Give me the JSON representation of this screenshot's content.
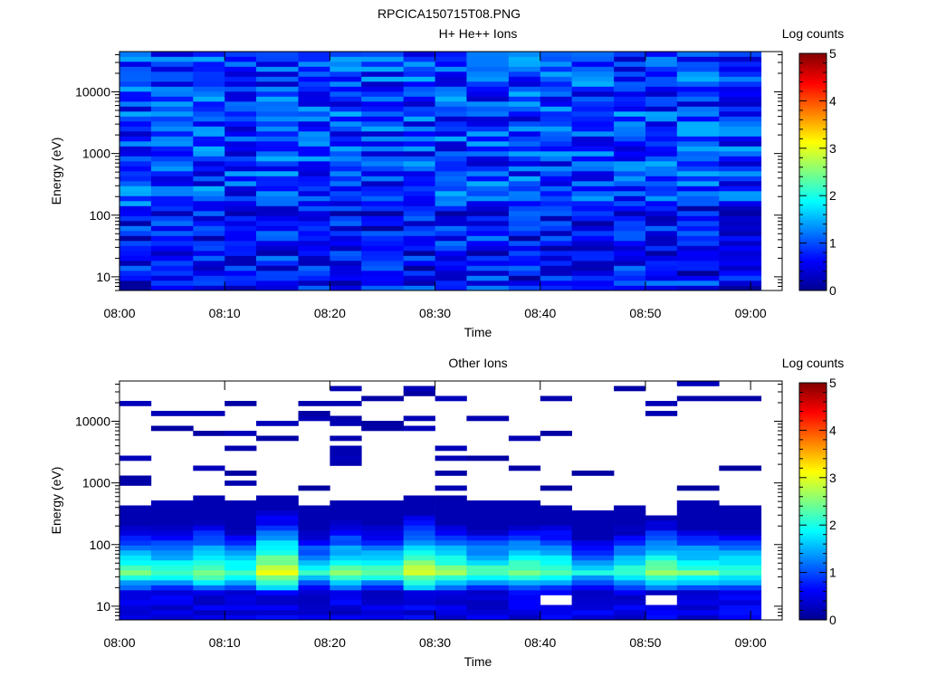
{
  "figure": {
    "title": "RPCICA150715T08.PNG"
  },
  "chart_data": [
    {
      "type": "heatmap",
      "title": "H+ He++ Ions",
      "xlabel": "Time",
      "ylabel": "Energy (eV)",
      "x_ticks": [
        "08:00",
        "08:10",
        "08:20",
        "08:30",
        "08:40",
        "08:50",
        "09:00"
      ],
      "y_ticks": [
        "10",
        "100",
        "1000",
        "10000"
      ],
      "y_scale": "log",
      "ylim": [
        6,
        45000
      ],
      "xlim": [
        "08:00",
        "09:03"
      ],
      "colorbar": {
        "label": "Log counts",
        "ticks": [
          "0",
          "1",
          "2",
          "3",
          "4",
          "5"
        ],
        "range": [
          0,
          5
        ]
      },
      "time_bins": [
        "08:00",
        "08:03",
        "08:07",
        "08:10",
        "08:13",
        "08:17",
        "08:20",
        "08:23",
        "08:27",
        "08:30",
        "08:33",
        "08:37",
        "08:40",
        "08:43",
        "08:47",
        "08:50",
        "08:53",
        "08:57"
      ],
      "energy_range": [
        6,
        45000
      ],
      "energy_bins": 48,
      "profile": "uniform",
      "cell_level_range": [
        0.3,
        1.5
      ],
      "colors": {
        "fill": "#1e6cf0",
        "data_end_time": "09:01"
      }
    },
    {
      "type": "heatmap",
      "title": "Other Ions",
      "xlabel": "Time",
      "ylabel": "Energy (eV)",
      "x_ticks": [
        "08:00",
        "08:10",
        "08:20",
        "08:30",
        "08:40",
        "08:50",
        "09:00"
      ],
      "y_ticks": [
        "10",
        "100",
        "1000",
        "10000"
      ],
      "y_scale": "log",
      "ylim": [
        6,
        45000
      ],
      "xlim": [
        "08:00",
        "09:03"
      ],
      "colorbar": {
        "label": "Log counts",
        "ticks": [
          "0",
          "1",
          "2",
          "3",
          "4",
          "5"
        ],
        "range": [
          0,
          5
        ]
      },
      "time_bins": [
        "08:00",
        "08:03",
        "08:07",
        "08:10",
        "08:13",
        "08:17",
        "08:20",
        "08:23",
        "08:27",
        "08:30",
        "08:33",
        "08:37",
        "08:40",
        "08:43",
        "08:47",
        "08:50",
        "08:53",
        "08:57"
      ],
      "energy_range": [
        6,
        45000
      ],
      "energy_bins": 48,
      "profile": "low-energy peak",
      "peak_energy_eV": 35,
      "peak_levels": [
        2.4,
        2.3,
        2.6,
        2.2,
        3.0,
        2.1,
        2.5,
        2.3,
        2.9,
        2.6,
        2.3,
        2.5,
        2.4,
        1.9,
        2.2,
        2.6,
        2.4,
        2.3
      ],
      "upper_energy_of_continuous_signal_eV": [
        400,
        420,
        600,
        520,
        620,
        450,
        500,
        480,
        650,
        560,
        520,
        540,
        420,
        350,
        330,
        300,
        560,
        420
      ],
      "sparse_high_energy": true,
      "empty_cells": [
        {
          "time": "08:40",
          "energy_eV": 12
        },
        {
          "time": "08:50",
          "energy_eV": 12
        }
      ],
      "colors": {
        "background": "#ffffff",
        "data_end_time": "09:01"
      }
    }
  ]
}
